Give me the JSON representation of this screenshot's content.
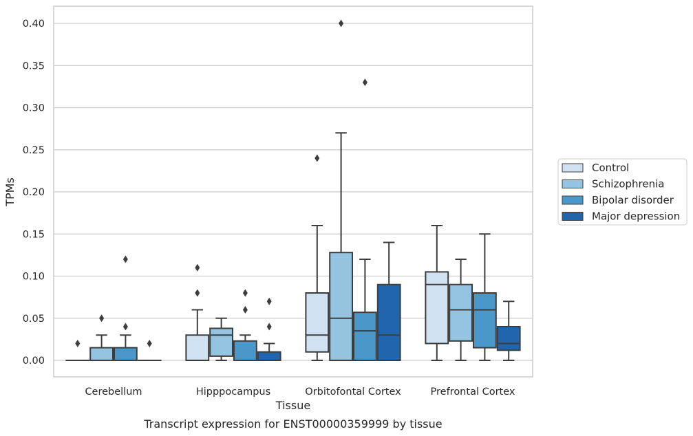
{
  "chart_data": {
    "type": "boxplot",
    "title": "",
    "caption": "Transcript expression for ENST00000359999 by tissue",
    "xlabel": "Tissue",
    "ylabel": "TPMs",
    "ylim": [
      -0.02,
      0.42
    ],
    "yticks": [
      0.0,
      0.05,
      0.1,
      0.15,
      0.2,
      0.25,
      0.3,
      0.35,
      0.4
    ],
    "ytick_labels": [
      "0.00",
      "0.05",
      "0.10",
      "0.15",
      "0.20",
      "0.25",
      "0.30",
      "0.35",
      "0.40"
    ],
    "grid": "horizontal",
    "legend_position": "outside-right",
    "categories": [
      "Cerebellum",
      "Hipppocampus",
      "Orbitofontal Cortex",
      "Prefrontal Cortex"
    ],
    "series": [
      {
        "name": "Control",
        "color": "#d0e1f2",
        "boxes": [
          {
            "q1": 0.0,
            "median": 0.0,
            "q3": 0.0,
            "whislo": 0.0,
            "whishi": 0.0,
            "fliers": [
              0.02
            ]
          },
          {
            "q1": 0.0,
            "median": 0.0,
            "q3": 0.03,
            "whislo": 0.0,
            "whishi": 0.06,
            "fliers": [
              0.08,
              0.11
            ]
          },
          {
            "q1": 0.01,
            "median": 0.03,
            "q3": 0.08,
            "whislo": 0.0,
            "whishi": 0.16,
            "fliers": [
              0.24
            ]
          },
          {
            "q1": 0.02,
            "median": 0.09,
            "q3": 0.105,
            "whislo": 0.0,
            "whishi": 0.16,
            "fliers": []
          }
        ]
      },
      {
        "name": "Schizophrenia",
        "color": "#94c4df",
        "boxes": [
          {
            "q1": 0.0,
            "median": 0.0,
            "q3": 0.015,
            "whislo": 0.0,
            "whishi": 0.03,
            "fliers": [
              0.05
            ]
          },
          {
            "q1": 0.005,
            "median": 0.03,
            "q3": 0.038,
            "whislo": 0.0,
            "whishi": 0.05,
            "fliers": []
          },
          {
            "q1": 0.0,
            "median": 0.05,
            "q3": 0.128,
            "whislo": 0.0,
            "whishi": 0.27,
            "fliers": [
              0.4
            ]
          },
          {
            "q1": 0.023,
            "median": 0.06,
            "q3": 0.09,
            "whislo": 0.0,
            "whishi": 0.12,
            "fliers": []
          }
        ]
      },
      {
        "name": "Bipolar disorder",
        "color": "#4a98c9",
        "boxes": [
          {
            "q1": 0.0,
            "median": 0.0,
            "q3": 0.015,
            "whislo": 0.0,
            "whishi": 0.03,
            "fliers": [
              0.04,
              0.12
            ]
          },
          {
            "q1": 0.0,
            "median": 0.0,
            "q3": 0.023,
            "whislo": 0.0,
            "whishi": 0.03,
            "fliers": [
              0.06,
              0.08
            ]
          },
          {
            "q1": 0.0,
            "median": 0.035,
            "q3": 0.057,
            "whislo": 0.0,
            "whishi": 0.12,
            "fliers": [
              0.33
            ]
          },
          {
            "q1": 0.015,
            "median": 0.06,
            "q3": 0.08,
            "whislo": 0.0,
            "whishi": 0.15,
            "fliers": []
          }
        ]
      },
      {
        "name": "Major depression",
        "color": "#2166ac",
        "boxes": [
          {
            "q1": 0.0,
            "median": 0.0,
            "q3": 0.0,
            "whislo": 0.0,
            "whishi": 0.0,
            "fliers": [
              0.02
            ]
          },
          {
            "q1": 0.0,
            "median": 0.0,
            "q3": 0.01,
            "whislo": 0.0,
            "whishi": 0.02,
            "fliers": [
              0.04,
              0.07
            ]
          },
          {
            "q1": 0.0,
            "median": 0.03,
            "q3": 0.09,
            "whislo": 0.0,
            "whishi": 0.14,
            "fliers": []
          },
          {
            "q1": 0.012,
            "median": 0.02,
            "q3": 0.04,
            "whislo": 0.0,
            "whishi": 0.07,
            "fliers": []
          }
        ]
      }
    ]
  }
}
